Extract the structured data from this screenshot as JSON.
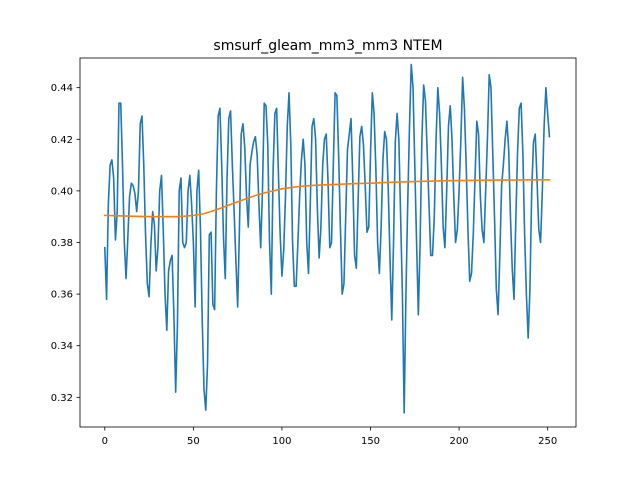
{
  "chart_data": {
    "type": "line",
    "title": "smsurf_gleam_mm3_mm3 NTEM",
    "xlabel": "",
    "ylabel": "",
    "xlim": [
      -14,
      266
    ],
    "ylim": [
      0.3085,
      0.4515
    ],
    "grid": false,
    "xticks": [
      0,
      50,
      100,
      150,
      200,
      250
    ],
    "xtick_labels": [
      "0",
      "50",
      "100",
      "150",
      "200",
      "250"
    ],
    "yticks": [
      0.32,
      0.34,
      0.36,
      0.38,
      0.4,
      0.42,
      0.44
    ],
    "ytick_labels": [
      "0.32",
      "0.34",
      "0.36",
      "0.38",
      "0.40",
      "0.42",
      "0.44"
    ],
    "series": [
      {
        "color": "#1f77b4",
        "points": [
          [
            0,
            0.378
          ],
          [
            1,
            0.358
          ],
          [
            2,
            0.395
          ],
          [
            3,
            0.41
          ],
          [
            4,
            0.412
          ],
          [
            5,
            0.405
          ],
          [
            6,
            0.381
          ],
          [
            7,
            0.392
          ],
          [
            8,
            0.434
          ],
          [
            9,
            0.434
          ],
          [
            10,
            0.41
          ],
          [
            11,
            0.38
          ],
          [
            12,
            0.366
          ],
          [
            13,
            0.382
          ],
          [
            14,
            0.398
          ],
          [
            15,
            0.403
          ],
          [
            16,
            0.402
          ],
          [
            17,
            0.399
          ],
          [
            18,
            0.392
          ],
          [
            19,
            0.4
          ],
          [
            20,
            0.426
          ],
          [
            21,
            0.429
          ],
          [
            22,
            0.41
          ],
          [
            23,
            0.383
          ],
          [
            24,
            0.364
          ],
          [
            25,
            0.359
          ],
          [
            26,
            0.379
          ],
          [
            27,
            0.392
          ],
          [
            28,
            0.387
          ],
          [
            29,
            0.369
          ],
          [
            30,
            0.378
          ],
          [
            31,
            0.4
          ],
          [
            32,
            0.406
          ],
          [
            33,
            0.385
          ],
          [
            34,
            0.36
          ],
          [
            35,
            0.346
          ],
          [
            36,
            0.369
          ],
          [
            37,
            0.373
          ],
          [
            38,
            0.375
          ],
          [
            39,
            0.352
          ],
          [
            40,
            0.322
          ],
          [
            41,
            0.348
          ],
          [
            42,
            0.4
          ],
          [
            43,
            0.405
          ],
          [
            44,
            0.38
          ],
          [
            45,
            0.378
          ],
          [
            46,
            0.38
          ],
          [
            47,
            0.4
          ],
          [
            48,
            0.406
          ],
          [
            49,
            0.395
          ],
          [
            50,
            0.38
          ],
          [
            51,
            0.355
          ],
          [
            52,
            0.4
          ],
          [
            53,
            0.408
          ],
          [
            54,
            0.385
          ],
          [
            55,
            0.35
          ],
          [
            56,
            0.323
          ],
          [
            57,
            0.315
          ],
          [
            58,
            0.333
          ],
          [
            59,
            0.383
          ],
          [
            60,
            0.384
          ],
          [
            61,
            0.356
          ],
          [
            62,
            0.354
          ],
          [
            63,
            0.4
          ],
          [
            64,
            0.429
          ],
          [
            65,
            0.432
          ],
          [
            66,
            0.41
          ],
          [
            67,
            0.382
          ],
          [
            68,
            0.366
          ],
          [
            69,
            0.405
          ],
          [
            70,
            0.428
          ],
          [
            71,
            0.431
          ],
          [
            72,
            0.41
          ],
          [
            73,
            0.392
          ],
          [
            74,
            0.373
          ],
          [
            75,
            0.355
          ],
          [
            76,
            0.385
          ],
          [
            77,
            0.422
          ],
          [
            78,
            0.426
          ],
          [
            79,
            0.417
          ],
          [
            80,
            0.398
          ],
          [
            81,
            0.386
          ],
          [
            82,
            0.41
          ],
          [
            83,
            0.415
          ],
          [
            84,
            0.419
          ],
          [
            85,
            0.421
          ],
          [
            86,
            0.414
          ],
          [
            87,
            0.395
          ],
          [
            88,
            0.378
          ],
          [
            89,
            0.4
          ],
          [
            90,
            0.434
          ],
          [
            91,
            0.433
          ],
          [
            92,
            0.418
          ],
          [
            93,
            0.38
          ],
          [
            94,
            0.36
          ],
          [
            95,
            0.408
          ],
          [
            96,
            0.43
          ],
          [
            97,
            0.432
          ],
          [
            98,
            0.407
          ],
          [
            99,
            0.383
          ],
          [
            100,
            0.367
          ],
          [
            101,
            0.377
          ],
          [
            102,
            0.398
          ],
          [
            103,
            0.425
          ],
          [
            104,
            0.438
          ],
          [
            105,
            0.418
          ],
          [
            106,
            0.38
          ],
          [
            107,
            0.363
          ],
          [
            108,
            0.363
          ],
          [
            109,
            0.38
          ],
          [
            110,
            0.398
          ],
          [
            111,
            0.412
          ],
          [
            112,
            0.42
          ],
          [
            113,
            0.41
          ],
          [
            114,
            0.38
          ],
          [
            115,
            0.368
          ],
          [
            116,
            0.395
          ],
          [
            117,
            0.425
          ],
          [
            118,
            0.428
          ],
          [
            119,
            0.42
          ],
          [
            120,
            0.393
          ],
          [
            121,
            0.374
          ],
          [
            122,
            0.386
          ],
          [
            123,
            0.41
          ],
          [
            124,
            0.42
          ],
          [
            125,
            0.422
          ],
          [
            126,
            0.404
          ],
          [
            127,
            0.378
          ],
          [
            128,
            0.38
          ],
          [
            129,
            0.41
          ],
          [
            130,
            0.438
          ],
          [
            131,
            0.437
          ],
          [
            132,
            0.414
          ],
          [
            133,
            0.386
          ],
          [
            134,
            0.36
          ],
          [
            135,
            0.364
          ],
          [
            136,
            0.39
          ],
          [
            137,
            0.416
          ],
          [
            138,
            0.422
          ],
          [
            139,
            0.428
          ],
          [
            140,
            0.404
          ],
          [
            141,
            0.375
          ],
          [
            142,
            0.37
          ],
          [
            143,
            0.396
          ],
          [
            144,
            0.421
          ],
          [
            145,
            0.425
          ],
          [
            146,
            0.418
          ],
          [
            147,
            0.402
          ],
          [
            148,
            0.384
          ],
          [
            149,
            0.386
          ],
          [
            150,
            0.414
          ],
          [
            151,
            0.438
          ],
          [
            152,
            0.43
          ],
          [
            153,
            0.409
          ],
          [
            154,
            0.38
          ],
          [
            155,
            0.368
          ],
          [
            156,
            0.386
          ],
          [
            157,
            0.412
          ],
          [
            158,
            0.423
          ],
          [
            159,
            0.42
          ],
          [
            160,
            0.401
          ],
          [
            161,
            0.374
          ],
          [
            162,
            0.35
          ],
          [
            163,
            0.38
          ],
          [
            164,
            0.419
          ],
          [
            165,
            0.43
          ],
          [
            166,
            0.42
          ],
          [
            167,
            0.39
          ],
          [
            168,
            0.36
          ],
          [
            169,
            0.314
          ],
          [
            170,
            0.36
          ],
          [
            171,
            0.395
          ],
          [
            172,
            0.425
          ],
          [
            173,
            0.449
          ],
          [
            174,
            0.44
          ],
          [
            175,
            0.41
          ],
          [
            176,
            0.38
          ],
          [
            177,
            0.352
          ],
          [
            178,
            0.38
          ],
          [
            179,
            0.42
          ],
          [
            180,
            0.441
          ],
          [
            181,
            0.435
          ],
          [
            182,
            0.415
          ],
          [
            183,
            0.395
          ],
          [
            184,
            0.375
          ],
          [
            185,
            0.375
          ],
          [
            186,
            0.39
          ],
          [
            187,
            0.42
          ],
          [
            188,
            0.44
          ],
          [
            189,
            0.43
          ],
          [
            190,
            0.41
          ],
          [
            191,
            0.386
          ],
          [
            192,
            0.378
          ],
          [
            193,
            0.4
          ],
          [
            194,
            0.425
          ],
          [
            195,
            0.433
          ],
          [
            196,
            0.42
          ],
          [
            197,
            0.398
          ],
          [
            198,
            0.38
          ],
          [
            199,
            0.385
          ],
          [
            200,
            0.4
          ],
          [
            201,
            0.42
          ],
          [
            202,
            0.444
          ],
          [
            203,
            0.432
          ],
          [
            204,
            0.41
          ],
          [
            205,
            0.385
          ],
          [
            206,
            0.365
          ],
          [
            207,
            0.368
          ],
          [
            208,
            0.383
          ],
          [
            209,
            0.405
          ],
          [
            210,
            0.427
          ],
          [
            211,
            0.422
          ],
          [
            212,
            0.398
          ],
          [
            213,
            0.385
          ],
          [
            214,
            0.38
          ],
          [
            215,
            0.4
          ],
          [
            216,
            0.42
          ],
          [
            217,
            0.445
          ],
          [
            218,
            0.44
          ],
          [
            219,
            0.415
          ],
          [
            220,
            0.39
          ],
          [
            221,
            0.362
          ],
          [
            222,
            0.352
          ],
          [
            223,
            0.375
          ],
          [
            224,
            0.402
          ],
          [
            225,
            0.41
          ],
          [
            226,
            0.42
          ],
          [
            227,
            0.427
          ],
          [
            228,
            0.416
          ],
          [
            229,
            0.39
          ],
          [
            230,
            0.37
          ],
          [
            231,
            0.358
          ],
          [
            232,
            0.388
          ],
          [
            233,
            0.415
          ],
          [
            234,
            0.432
          ],
          [
            235,
            0.434
          ],
          [
            236,
            0.415
          ],
          [
            237,
            0.383
          ],
          [
            238,
            0.36
          ],
          [
            239,
            0.343
          ],
          [
            240,
            0.362
          ],
          [
            241,
            0.4
          ],
          [
            242,
            0.419
          ],
          [
            243,
            0.422
          ],
          [
            244,
            0.404
          ],
          [
            245,
            0.385
          ],
          [
            246,
            0.38
          ],
          [
            247,
            0.4
          ],
          [
            248,
            0.425
          ],
          [
            249,
            0.44
          ],
          [
            250,
            0.43
          ],
          [
            251,
            0.421
          ]
        ]
      },
      {
        "color": "#ff7f0e",
        "points": [
          [
            0,
            0.3905
          ],
          [
            10,
            0.3903
          ],
          [
            20,
            0.3901
          ],
          [
            30,
            0.39
          ],
          [
            40,
            0.39
          ],
          [
            45,
            0.3902
          ],
          [
            50,
            0.3905
          ],
          [
            55,
            0.391
          ],
          [
            60,
            0.392
          ],
          [
            65,
            0.3932
          ],
          [
            70,
            0.3945
          ],
          [
            75,
            0.3958
          ],
          [
            80,
            0.397
          ],
          [
            85,
            0.3982
          ],
          [
            90,
            0.3992
          ],
          [
            95,
            0.4
          ],
          [
            100,
            0.4008
          ],
          [
            105,
            0.4013
          ],
          [
            110,
            0.4017
          ],
          [
            115,
            0.402
          ],
          [
            120,
            0.4022
          ],
          [
            130,
            0.4025
          ],
          [
            140,
            0.4028
          ],
          [
            150,
            0.403
          ],
          [
            160,
            0.4033
          ],
          [
            170,
            0.4035
          ],
          [
            180,
            0.4037
          ],
          [
            190,
            0.4039
          ],
          [
            200,
            0.404
          ],
          [
            210,
            0.4041
          ],
          [
            220,
            0.4042
          ],
          [
            230,
            0.4042
          ],
          [
            240,
            0.4043
          ],
          [
            251,
            0.4043
          ]
        ]
      }
    ]
  }
}
